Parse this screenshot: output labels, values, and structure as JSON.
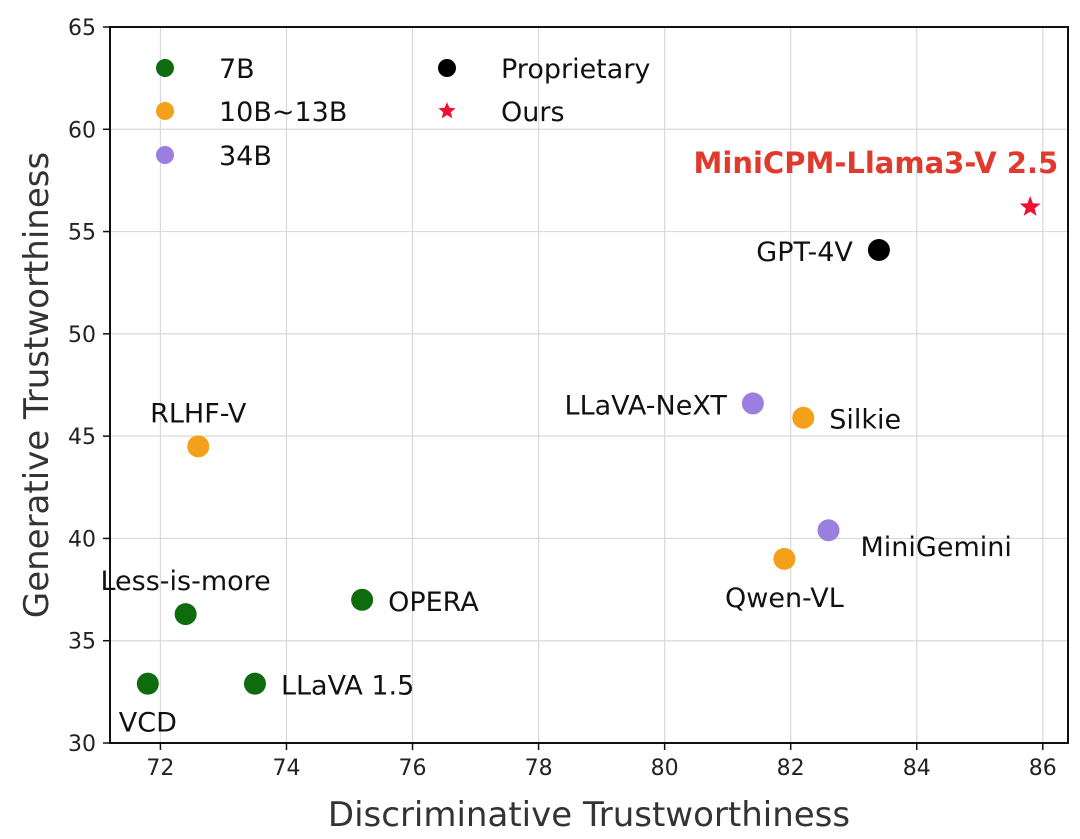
{
  "chart_data": {
    "type": "scatter",
    "title": "",
    "xlabel": "Discriminative Trustworthiness",
    "ylabel": "Generative Trustworthiness",
    "xlim": [
      71.2,
      86.4
    ],
    "ylim": [
      30,
      65
    ],
    "xticks": [
      72,
      74,
      76,
      78,
      80,
      82,
      84,
      86
    ],
    "yticks": [
      30,
      35,
      40,
      45,
      50,
      55,
      60,
      65
    ],
    "grid": true,
    "legend": {
      "placement": "top-left",
      "entries": [
        {
          "label": "7B",
          "color": "#0e6b0e",
          "marker": "circle"
        },
        {
          "label": "10B~13B",
          "color": "#f5a01a",
          "marker": "circle"
        },
        {
          "label": "34B",
          "color": "#9b7fe0",
          "marker": "circle"
        },
        {
          "label": "Proprietary",
          "color": "#000000",
          "marker": "circle"
        },
        {
          "label": "Ours",
          "color": "#ee1133",
          "marker": "star"
        }
      ]
    },
    "points": [
      {
        "label": "VCD",
        "x": 71.8,
        "y": 32.9,
        "group": "7B",
        "label_pos": "below"
      },
      {
        "label": "LLaVA 1.5",
        "x": 73.5,
        "y": 32.9,
        "group": "7B",
        "label_pos": "right"
      },
      {
        "label": "Less-is-more",
        "x": 72.4,
        "y": 36.3,
        "group": "7B",
        "label_pos": "above"
      },
      {
        "label": "OPERA",
        "x": 75.2,
        "y": 37.0,
        "group": "7B",
        "label_pos": "right"
      },
      {
        "label": "RLHF-V",
        "x": 72.6,
        "y": 44.5,
        "group": "10B~13B",
        "label_pos": "above"
      },
      {
        "label": "Qwen-VL",
        "x": 81.9,
        "y": 39.0,
        "group": "10B~13B",
        "label_pos": "below"
      },
      {
        "label": "Silkie",
        "x": 82.2,
        "y": 45.9,
        "group": "10B~13B",
        "label_pos": "right"
      },
      {
        "label": "LLaVA-NeXT",
        "x": 81.4,
        "y": 46.6,
        "group": "34B",
        "label_pos": "left"
      },
      {
        "label": "MiniGemini",
        "x": 82.6,
        "y": 40.4,
        "group": "34B",
        "label_pos": "below-right"
      },
      {
        "label": "GPT-4V",
        "x": 83.4,
        "y": 54.1,
        "group": "Proprietary",
        "label_pos": "left"
      },
      {
        "label": "MiniCPM-Llama3-V 2.5",
        "x": 85.8,
        "y": 56.2,
        "group": "Ours",
        "label_pos": "above-left",
        "highlight": true
      }
    ]
  }
}
